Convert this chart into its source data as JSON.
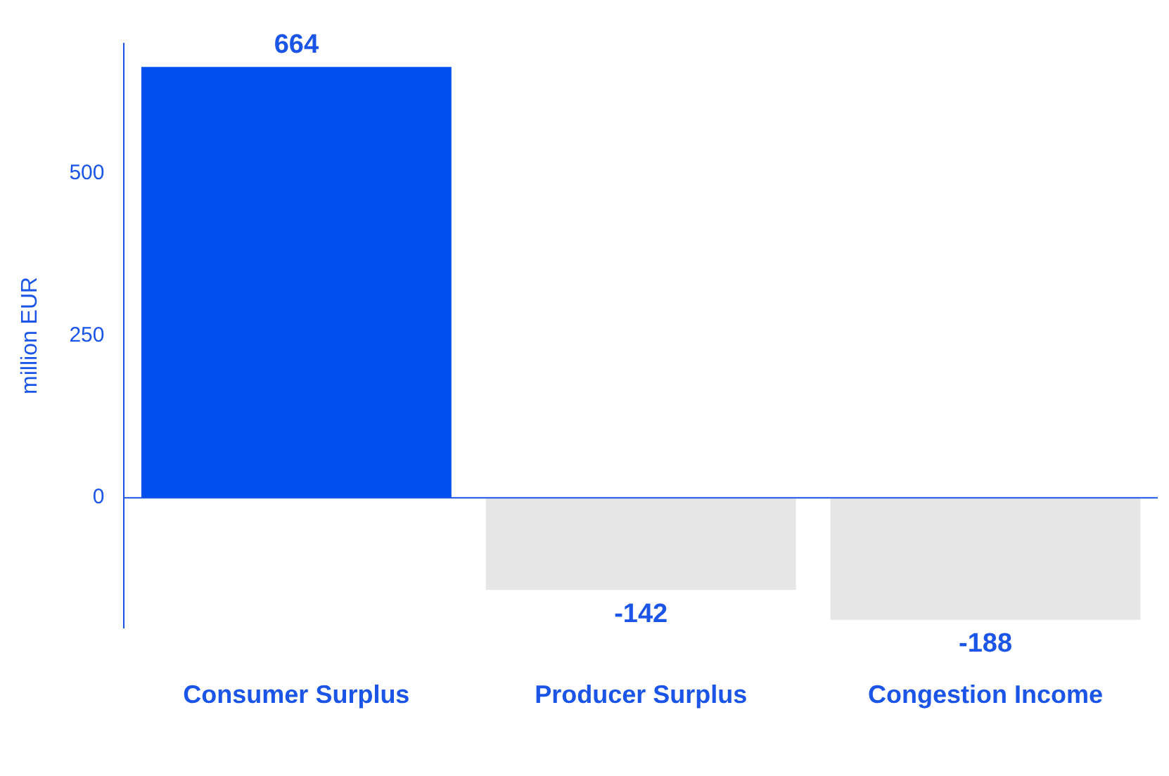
{
  "chart_data": {
    "type": "bar",
    "ylabel": "million EUR",
    "categories": [
      "Consumer Surplus",
      "Producer Surplus",
      "Congestion Income"
    ],
    "values": [
      664,
      -142,
      -188
    ],
    "colors": [
      "#0050ef",
      "#e6e6e6",
      "#e6e6e6"
    ],
    "ylim": [
      -200,
      700
    ],
    "yticks": [
      0,
      250,
      500
    ],
    "grid": false,
    "legend": false,
    "data_labels": true,
    "ref_lines": [
      {
        "axis": "y",
        "value": 0,
        "color": "#1a55e8"
      }
    ]
  }
}
